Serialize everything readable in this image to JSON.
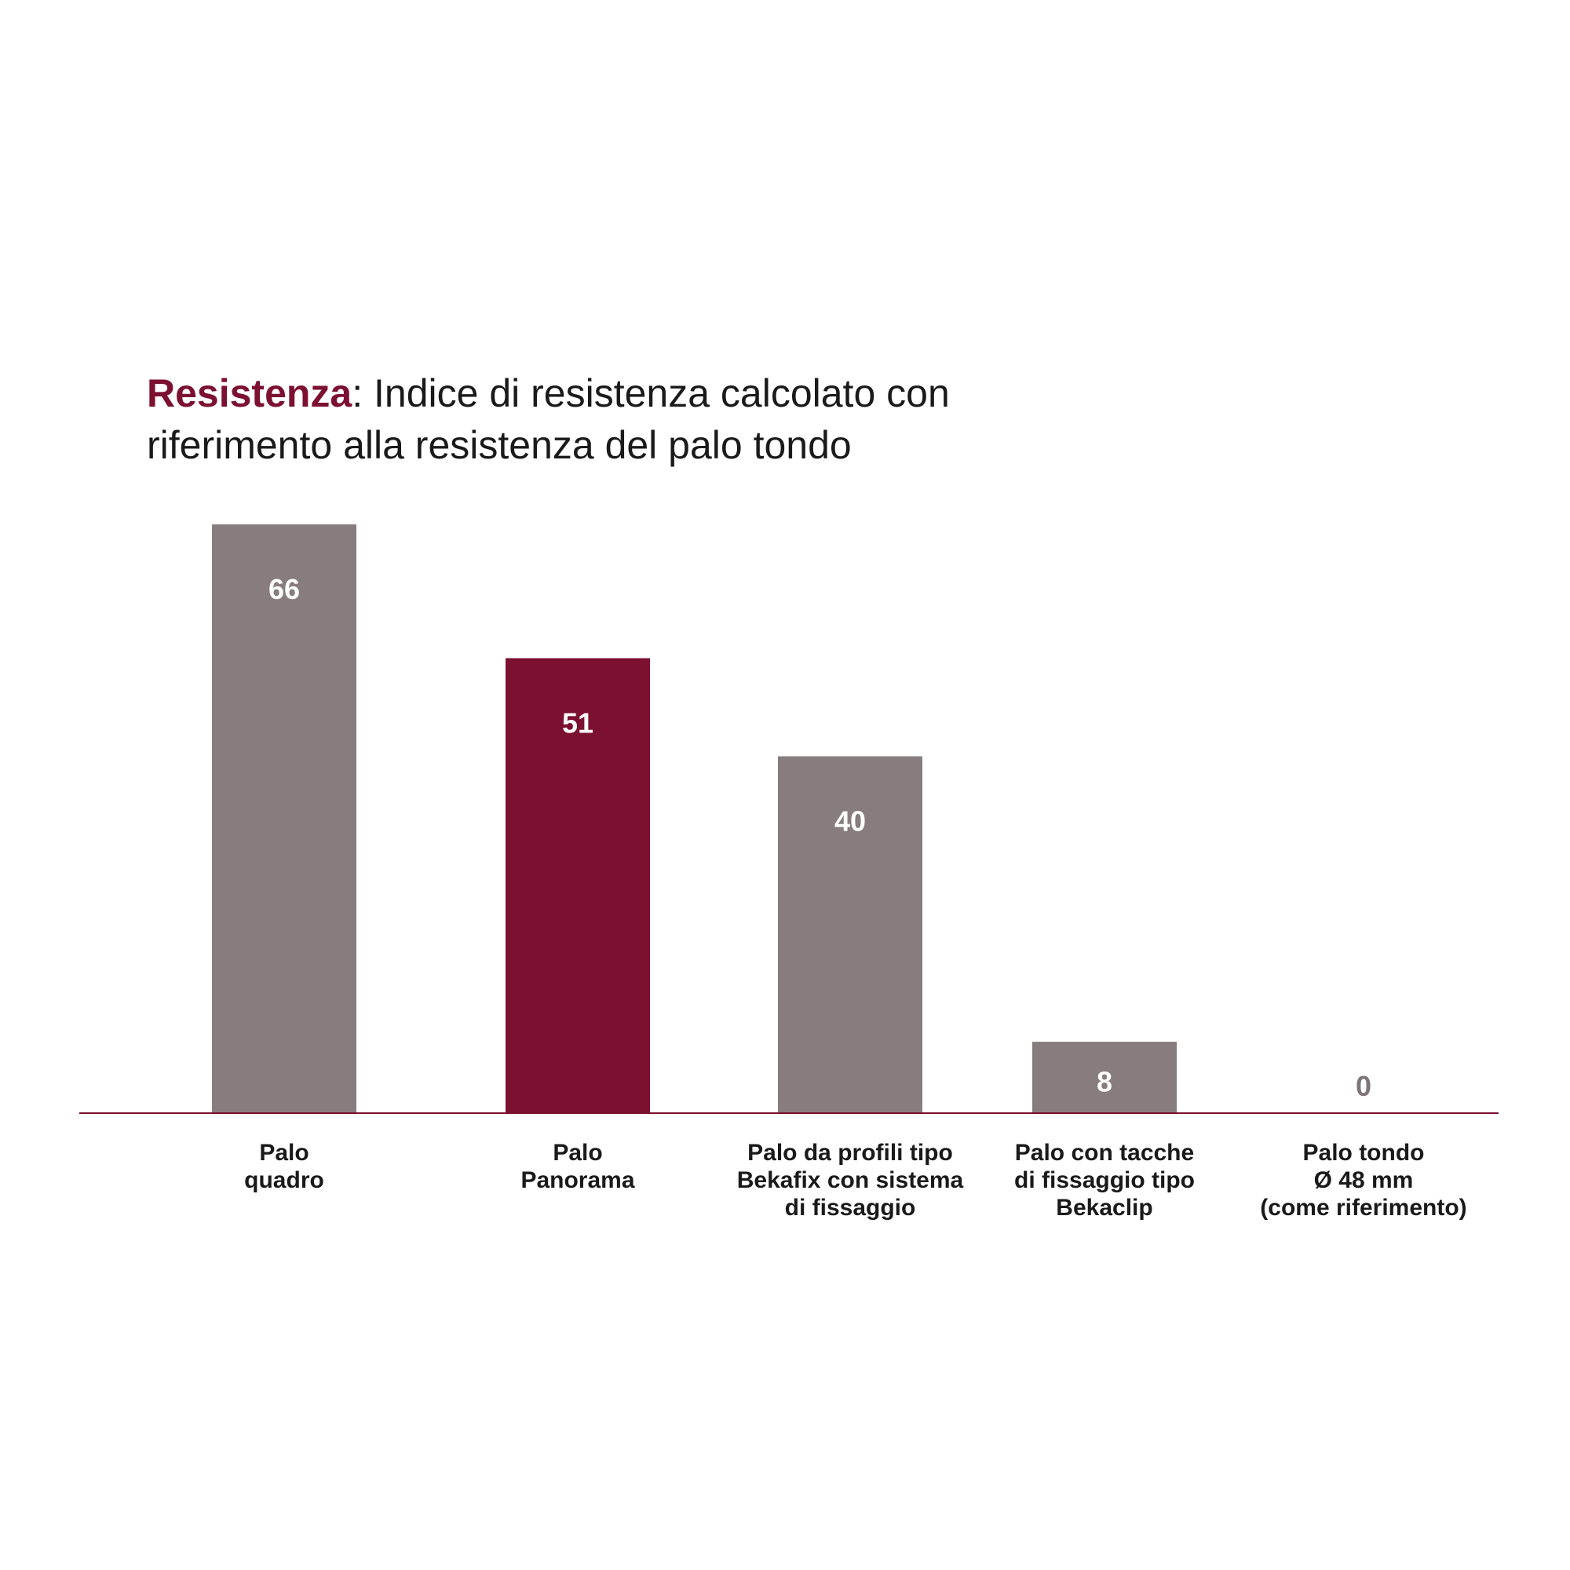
{
  "chart_data": {
    "type": "bar",
    "title_highlight": "Resistenza",
    "title_rest": ": Indice di resistenza calcolato con riferimento alla resistenza del palo tondo",
    "categories": [
      [
        "Palo",
        "quadro"
      ],
      [
        "Palo",
        "Panorama"
      ],
      [
        "Palo da profili tipo",
        "Bekafix con sistema",
        "di fissaggio"
      ],
      [
        "Palo con tacche",
        "di fissaggio tipo",
        "Bekaclip"
      ],
      [
        "Palo tondo",
        "Ø 48 mm",
        "(come riferimento)"
      ]
    ],
    "values": [
      66,
      51,
      40,
      8,
      0
    ],
    "value_labels": [
      "66",
      "51",
      "40",
      "8",
      "0"
    ],
    "colors": [
      "#877d7e",
      "#7c1031",
      "#877d7e",
      "#877d7e",
      "#877d7e"
    ],
    "axis_color": "#7c1031",
    "ylim": [
      0,
      66
    ],
    "grid": false,
    "xlabel": "",
    "ylabel": ""
  }
}
